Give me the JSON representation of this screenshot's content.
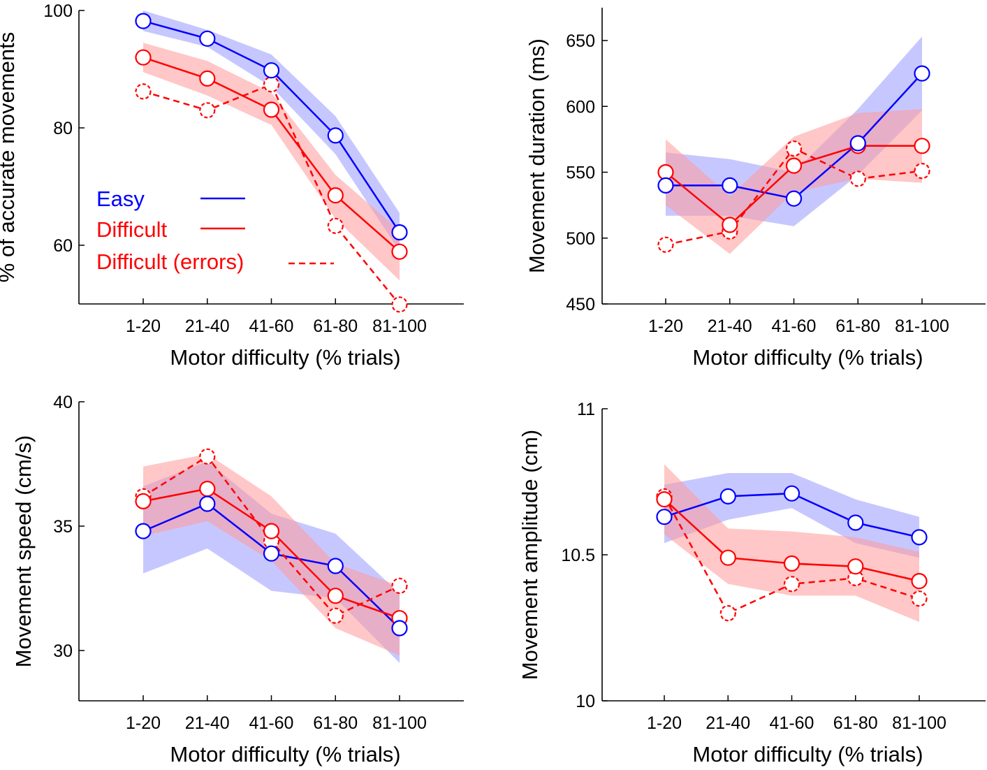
{
  "colors": {
    "easy": "#0000ff",
    "difficult": "#ff0000",
    "easy_band": "#9999ff",
    "difficult_band": "#ff9999"
  },
  "legend": {
    "items": [
      {
        "label": "Easy",
        "series": "easy",
        "style": "solid"
      },
      {
        "label": "Difficult",
        "series": "difficult",
        "style": "solid"
      },
      {
        "label": "Difficult (errors)",
        "series": "difficult_errors",
        "style": "dashed"
      }
    ]
  },
  "chart_data": [
    {
      "id": "accuracy",
      "type": "line",
      "categories": [
        "1-20",
        "21-40",
        "41-60",
        "61-80",
        "81-100"
      ],
      "xlabel": "Motor difficulty (% trials)",
      "ylabel": "% of accurate movements",
      "ylim": [
        50,
        100
      ],
      "yticks": [
        60,
        80,
        100
      ],
      "series": [
        {
          "name": "Easy",
          "color": "easy",
          "dashed": false,
          "values": [
            98.2,
            95.2,
            89.8,
            78.7,
            62.2
          ],
          "lower": [
            96.5,
            93.8,
            87.0,
            75.5,
            59.0
          ],
          "upper": [
            100.0,
            96.7,
            92.5,
            82.0,
            65.5
          ]
        },
        {
          "name": "Difficult",
          "color": "difficult",
          "dashed": false,
          "values": [
            92.0,
            88.4,
            83.1,
            68.5,
            58.9
          ],
          "lower": [
            89.5,
            85.5,
            80.5,
            64.5,
            54.0
          ],
          "upper": [
            94.5,
            91.4,
            86.0,
            72.0,
            62.5
          ]
        },
        {
          "name": "Difficult (errors)",
          "color": "difficult",
          "dashed": true,
          "values": [
            86.2,
            83.0,
            87.4,
            63.3,
            49.9
          ]
        }
      ]
    },
    {
      "id": "duration",
      "type": "line",
      "categories": [
        "1-20",
        "21-40",
        "41-60",
        "61-80",
        "81-100"
      ],
      "xlabel": "Motor difficulty (% trials)",
      "ylabel": "Movement duration (ms)",
      "ylim": [
        450,
        675
      ],
      "yticks": [
        450,
        500,
        550,
        600,
        650
      ],
      "series": [
        {
          "name": "Easy",
          "color": "easy",
          "dashed": false,
          "values": [
            540,
            540,
            530,
            572,
            625
          ],
          "lower": [
            517,
            517,
            509,
            548,
            597
          ],
          "upper": [
            565,
            560,
            550,
            598,
            653
          ]
        },
        {
          "name": "Difficult",
          "color": "difficult",
          "dashed": false,
          "values": [
            550,
            510,
            555,
            570,
            570
          ],
          "lower": [
            525,
            488,
            535,
            545,
            542
          ],
          "upper": [
            575,
            532,
            577,
            595,
            598
          ]
        },
        {
          "name": "Difficult (errors)",
          "color": "difficult",
          "dashed": true,
          "values": [
            495,
            505,
            568,
            545,
            551
          ]
        }
      ]
    },
    {
      "id": "speed",
      "type": "line",
      "categories": [
        "1-20",
        "21-40",
        "41-60",
        "61-80",
        "81-100"
      ],
      "xlabel": "Motor difficulty (% trials)",
      "ylabel": "Movement speed (cm/s)",
      "ylim": [
        28,
        40
      ],
      "yticks": [
        30,
        35,
        40
      ],
      "series": [
        {
          "name": "Easy",
          "color": "easy",
          "dashed": false,
          "values": [
            34.8,
            35.9,
            33.9,
            33.4,
            30.9
          ],
          "lower": [
            33.1,
            34.1,
            32.4,
            32.1,
            29.5
          ],
          "upper": [
            36.6,
            37.6,
            35.5,
            34.7,
            32.3
          ]
        },
        {
          "name": "Difficult",
          "color": "difficult",
          "dashed": false,
          "values": [
            36.0,
            36.5,
            34.8,
            32.2,
            31.3
          ],
          "lower": [
            34.6,
            35.2,
            33.6,
            30.9,
            29.8
          ],
          "upper": [
            37.4,
            37.9,
            36.2,
            33.5,
            32.6
          ]
        },
        {
          "name": "Difficult (errors)",
          "color": "difficult",
          "dashed": true,
          "values": [
            36.2,
            37.8,
            34.4,
            31.4,
            32.6
          ]
        }
      ]
    },
    {
      "id": "amplitude",
      "type": "line",
      "categories": [
        "1-20",
        "21-40",
        "41-60",
        "61-80",
        "81-100"
      ],
      "xlabel": "Motor difficulty (% trials)",
      "ylabel": "Movement amplitude (cm)",
      "ylim": [
        10,
        11
      ],
      "yticks": [
        10,
        10.5,
        11
      ],
      "series": [
        {
          "name": "Easy",
          "color": "easy",
          "dashed": false,
          "values": [
            10.63,
            10.7,
            10.71,
            10.61,
            10.56
          ],
          "lower": [
            10.54,
            10.62,
            10.66,
            10.54,
            10.49
          ],
          "upper": [
            10.74,
            10.78,
            10.78,
            10.69,
            10.63
          ]
        },
        {
          "name": "Difficult",
          "color": "difficult",
          "dashed": false,
          "values": [
            10.69,
            10.49,
            10.47,
            10.46,
            10.41
          ],
          "lower": [
            10.57,
            10.4,
            10.36,
            10.36,
            10.27
          ],
          "upper": [
            10.81,
            10.59,
            10.58,
            10.56,
            10.51
          ]
        },
        {
          "name": "Difficult (errors)",
          "color": "difficult",
          "dashed": true,
          "values": [
            10.7,
            10.3,
            10.4,
            10.42,
            10.35
          ]
        }
      ]
    }
  ]
}
